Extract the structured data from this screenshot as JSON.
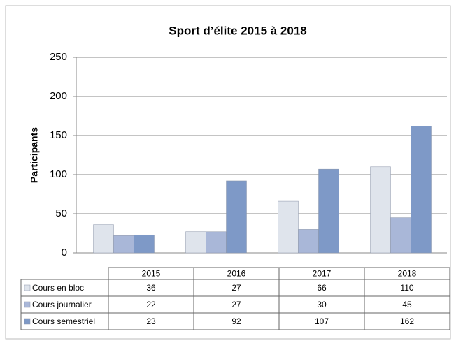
{
  "chart_data": {
    "type": "bar",
    "title": "Sport d’élite 2015 à 2018",
    "y_label": "Participants",
    "categories": [
      "2015",
      "2016",
      "2017",
      "2018"
    ],
    "series": [
      {
        "name": "Cours en bloc",
        "color": "#dfe4ec",
        "values": [
          36,
          27,
          66,
          110
        ]
      },
      {
        "name": "Cours journalier",
        "color": "#a9b7d8",
        "values": [
          22,
          27,
          30,
          45
        ]
      },
      {
        "name": "Cours semestriel",
        "color": "#7e99c7",
        "values": [
          23,
          92,
          107,
          162
        ]
      }
    ],
    "ylim": [
      0,
      250
    ],
    "yticks": [
      0,
      50,
      100,
      150,
      200,
      250
    ],
    "grid": true
  }
}
